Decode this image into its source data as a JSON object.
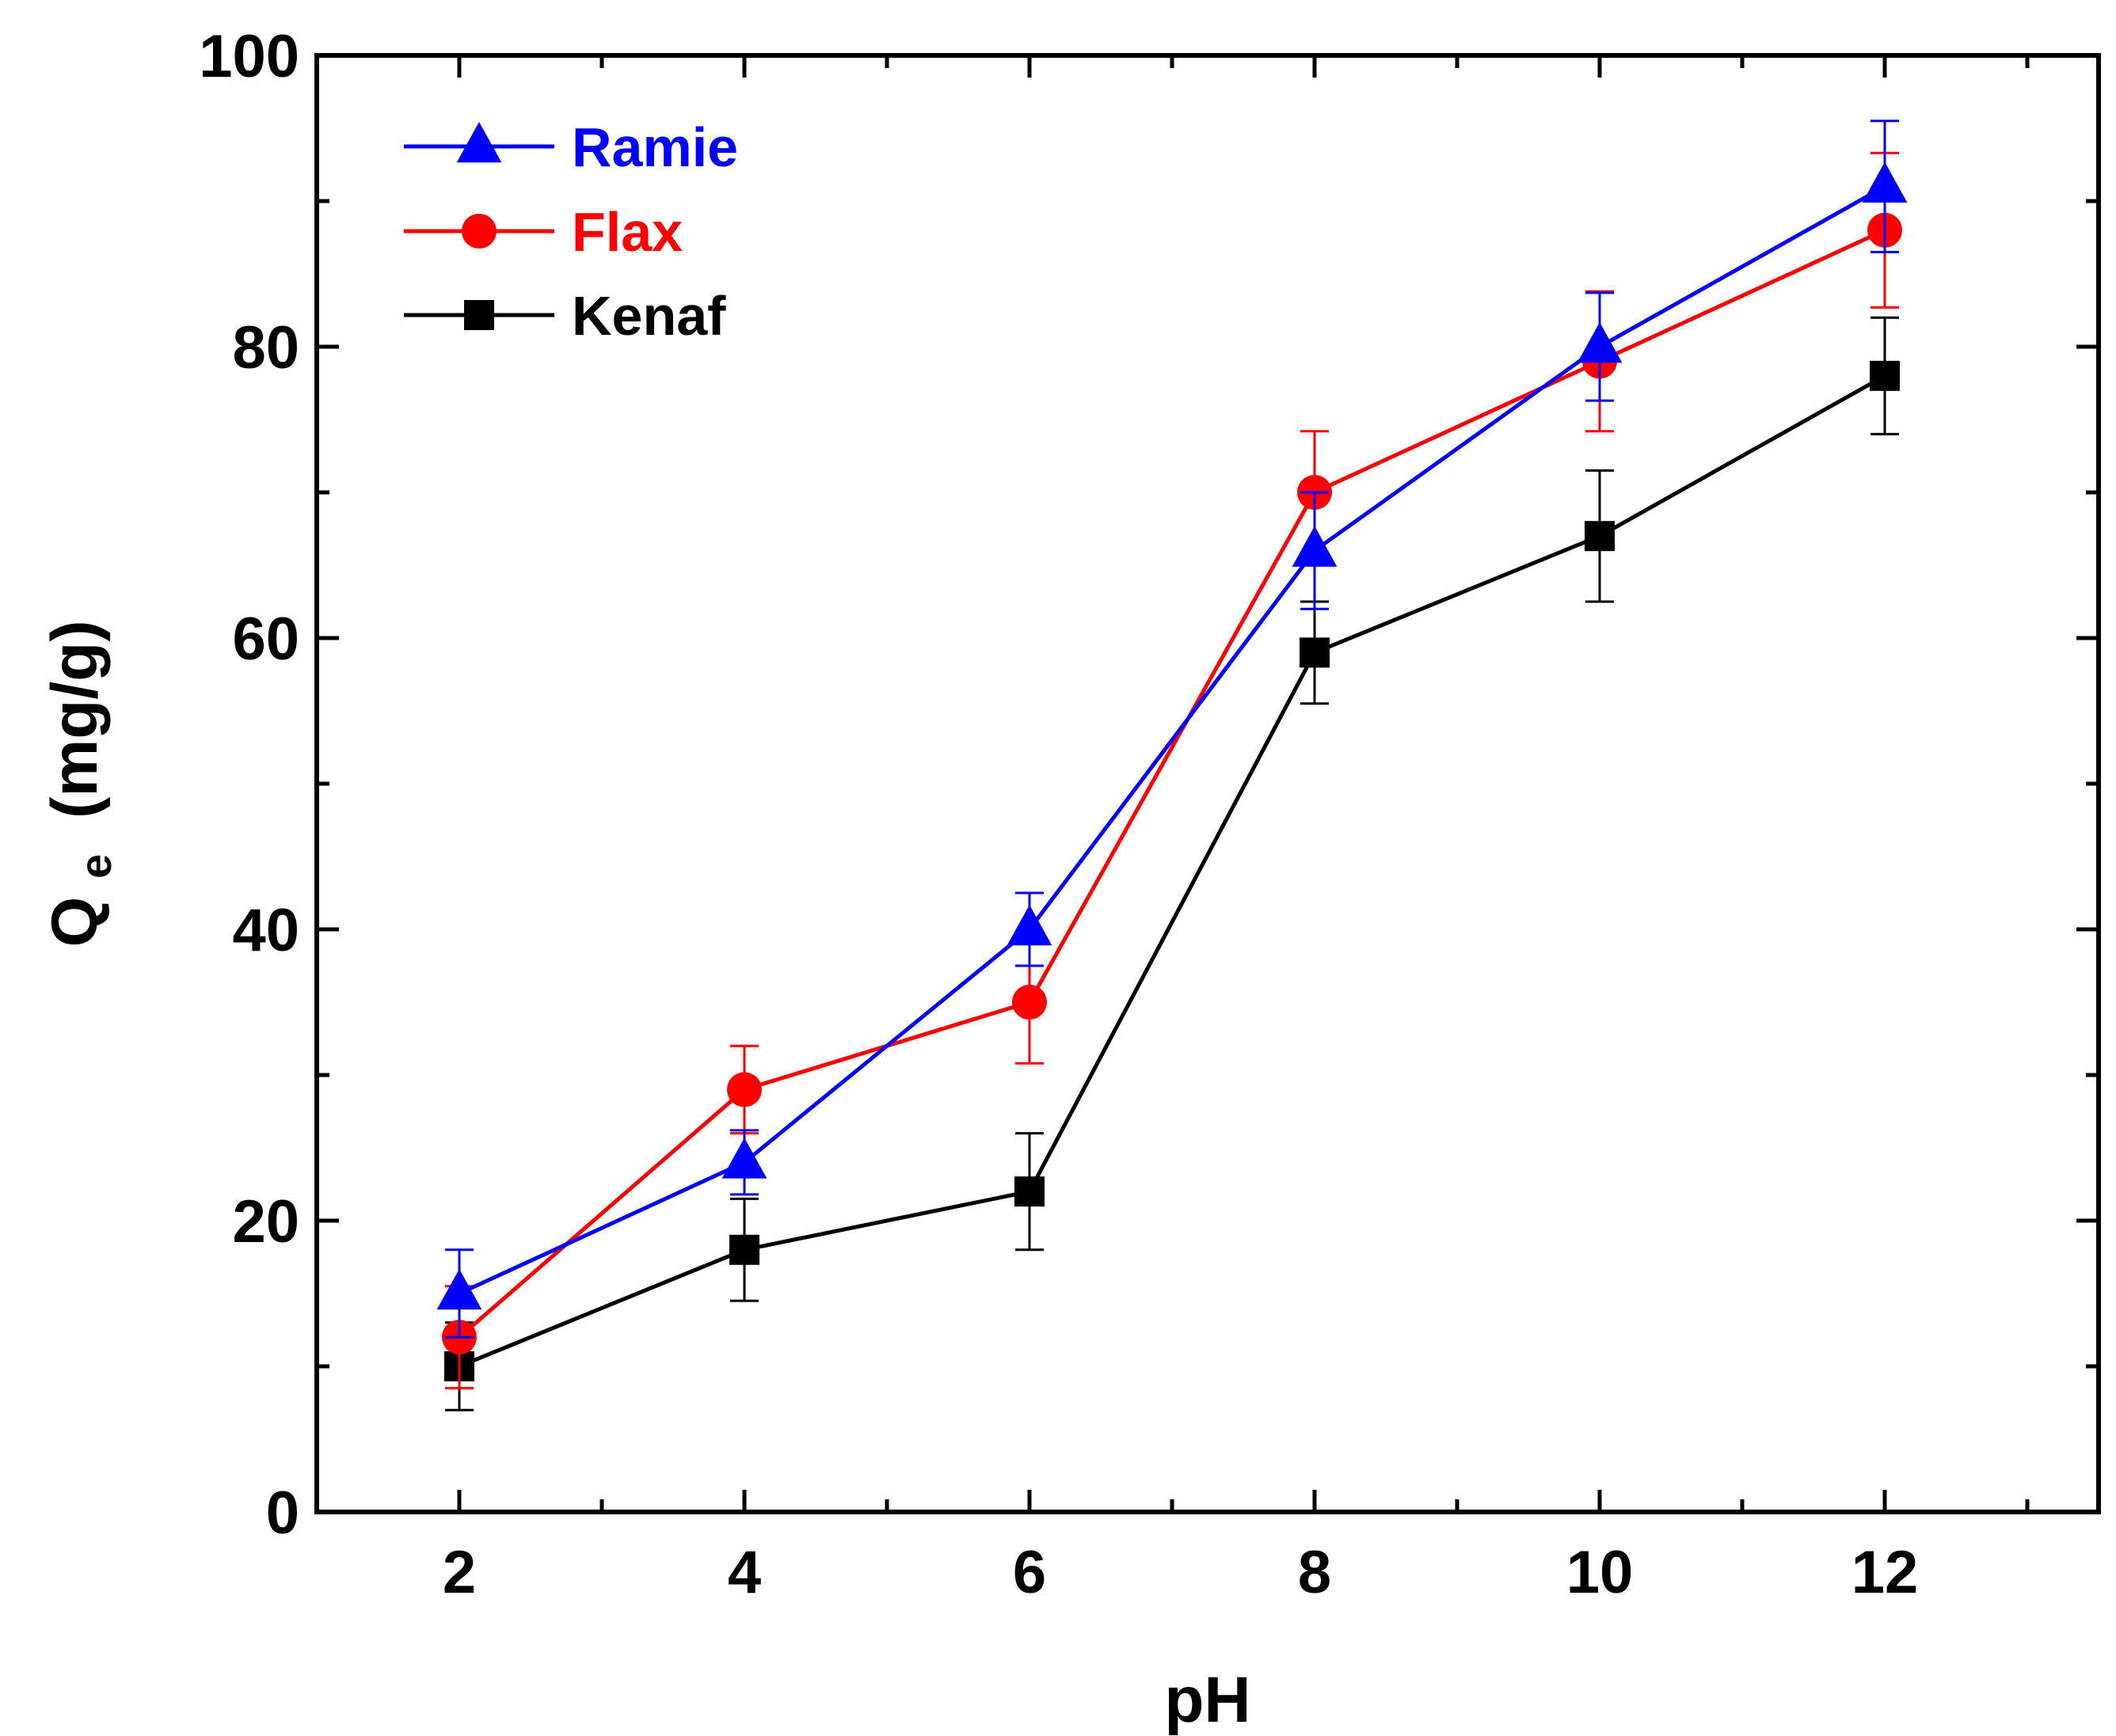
{
  "chart_data": {
    "type": "line",
    "title": "",
    "xlabel": "pH",
    "ylabel_main": "Q",
    "ylabel_sub": "e",
    "ylabel_units": "(mg/g)",
    "x": [
      2,
      4,
      6,
      8,
      10,
      12
    ],
    "xlim": [
      1,
      13.5
    ],
    "ylim": [
      0,
      100
    ],
    "xticks": [
      2,
      4,
      6,
      8,
      10,
      12
    ],
    "yticks": [
      0,
      20,
      40,
      60,
      80,
      100
    ],
    "y_minor_ticks": [
      10,
      30,
      50,
      70,
      90
    ],
    "x_minor_ticks": [
      3,
      5,
      7,
      9,
      11,
      13
    ],
    "grid": false,
    "legend_position": "top-left",
    "series": [
      {
        "name": "Ramie",
        "color": "#0000ff",
        "marker": "triangle",
        "values": [
          15,
          24,
          40,
          66,
          80,
          91
        ],
        "errors": [
          3,
          2.2,
          2.5,
          4,
          3.7,
          4.5
        ]
      },
      {
        "name": "Flax",
        "color": "#ff0000",
        "marker": "circle",
        "values": [
          12,
          29,
          35,
          70,
          79,
          88
        ],
        "errors": [
          3.5,
          3,
          4.2,
          4.2,
          4.8,
          5.3
        ]
      },
      {
        "name": "Kenaf",
        "color": "#000000",
        "marker": "square",
        "values": [
          10,
          18,
          22,
          59,
          67,
          78
        ],
        "errors": [
          3,
          3.5,
          4,
          3.5,
          4.5,
          4
        ]
      }
    ]
  }
}
